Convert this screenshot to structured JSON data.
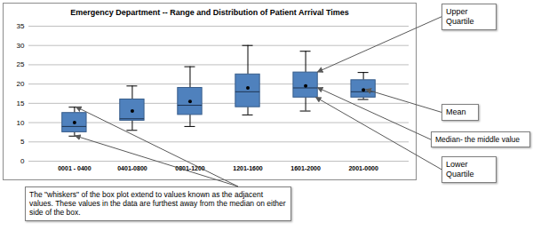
{
  "chart_data": {
    "type": "box",
    "title": "Emergency Department -- Range and Distribution of Patient Arrival Times",
    "categories": [
      "0001 - 0400",
      "0401-0800",
      "0801-1200",
      "1201-1600",
      "1601-2000",
      "2001-0000"
    ],
    "whisker_low": [
      6.5,
      8,
      9,
      12,
      13,
      16
    ],
    "q1": [
      7.5,
      10.5,
      12,
      14,
      16.5,
      16.5
    ],
    "median": [
      9,
      11,
      14.5,
      18,
      19,
      18
    ],
    "q3": [
      12.5,
      16,
      19,
      22.5,
      23,
      21
    ],
    "whisker_high": [
      14,
      19.5,
      24.5,
      30,
      28.5,
      23
    ],
    "mean": [
      10,
      13,
      15.5,
      19,
      19.5,
      18.5
    ],
    "color": "#4f81bd",
    "ylim": [
      0,
      35
    ],
    "yticks": [
      0,
      5,
      10,
      15,
      20,
      25,
      30,
      35
    ],
    "grid": true,
    "annotations": {
      "q3": "Upper Quartile",
      "mean": "Mean",
      "median": "Median- the middle value",
      "q1": "Lower Quartile",
      "whiskers": "The \"whiskers\" of the box plot extend to values known as the adjacent values. These values in the data are furthest away from the median on either side of the box."
    }
  }
}
